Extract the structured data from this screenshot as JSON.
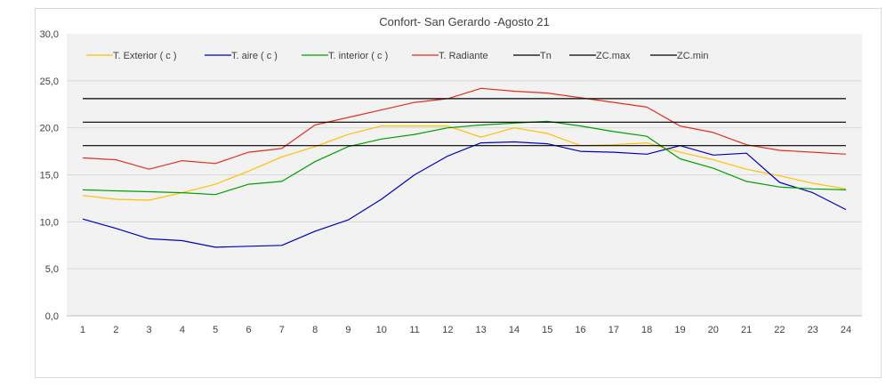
{
  "chart_data": {
    "type": "line",
    "title": "Confort- San Gerardo  -Agosto 21",
    "xlabel": "",
    "ylabel": "",
    "ylim": [
      0,
      30
    ],
    "yticks": [
      "0,0",
      "5,0",
      "10,0",
      "15,0",
      "20,0",
      "25,0",
      "30,0"
    ],
    "categories": [
      "1",
      "2",
      "3",
      "4",
      "5",
      "6",
      "7",
      "8",
      "9",
      "10",
      "11",
      "12",
      "13",
      "14",
      "15",
      "16",
      "17",
      "18",
      "19",
      "20",
      "21",
      "22",
      "23",
      "24"
    ],
    "grid": true,
    "legend_position": "top",
    "series": [
      {
        "name": "T. Exterior ( c )",
        "color": "#ffc000",
        "values": [
          12.8,
          12.4,
          12.3,
          13.1,
          14.0,
          15.4,
          16.9,
          18.0,
          19.3,
          20.2,
          20.2,
          20.2,
          19.0,
          20.0,
          19.4,
          18.1,
          18.2,
          18.4,
          17.4,
          16.6,
          15.6,
          14.9,
          14.1,
          13.5
        ]
      },
      {
        "name": "T. aire ( c )",
        "color": "#0000c0",
        "values": [
          10.3,
          9.3,
          8.2,
          8.0,
          7.3,
          7.4,
          7.5,
          9.0,
          10.2,
          12.4,
          15.0,
          17.0,
          18.4,
          18.5,
          18.3,
          17.5,
          17.4,
          17.2,
          18.1,
          17.1,
          17.3,
          14.2,
          13.1,
          11.3
        ]
      },
      {
        "name": "T. interior ( c )",
        "color": "#00a000",
        "values": [
          13.4,
          13.3,
          13.2,
          13.1,
          12.9,
          14.0,
          14.3,
          16.4,
          18.0,
          18.8,
          19.3,
          20.0,
          20.3,
          20.5,
          20.7,
          20.2,
          19.6,
          19.1,
          16.7,
          15.7,
          14.3,
          13.7,
          13.5,
          13.4
        ]
      },
      {
        "name": "T. Radiante",
        "color": "#e03020",
        "values": [
          16.8,
          16.6,
          15.6,
          16.5,
          16.2,
          17.4,
          17.8,
          20.3,
          21.1,
          21.9,
          22.7,
          23.1,
          24.2,
          23.9,
          23.7,
          23.2,
          22.7,
          22.2,
          20.2,
          19.5,
          18.2,
          17.6,
          17.4,
          17.2
        ]
      },
      {
        "name": "Tn",
        "color": "#000000",
        "values": [
          20.6,
          20.6,
          20.6,
          20.6,
          20.6,
          20.6,
          20.6,
          20.6,
          20.6,
          20.6,
          20.6,
          20.6,
          20.6,
          20.6,
          20.6,
          20.6,
          20.6,
          20.6,
          20.6,
          20.6,
          20.6,
          20.6,
          20.6,
          20.6
        ]
      },
      {
        "name": "ZC.max",
        "color": "#000000",
        "values": [
          23.1,
          23.1,
          23.1,
          23.1,
          23.1,
          23.1,
          23.1,
          23.1,
          23.1,
          23.1,
          23.1,
          23.1,
          23.1,
          23.1,
          23.1,
          23.1,
          23.1,
          23.1,
          23.1,
          23.1,
          23.1,
          23.1,
          23.1,
          23.1
        ]
      },
      {
        "name": "ZC.min",
        "color": "#000000",
        "values": [
          18.1,
          18.1,
          18.1,
          18.1,
          18.1,
          18.1,
          18.1,
          18.1,
          18.1,
          18.1,
          18.1,
          18.1,
          18.1,
          18.1,
          18.1,
          18.1,
          18.1,
          18.1,
          18.1,
          18.1,
          18.1,
          18.1,
          18.1,
          18.1
        ]
      }
    ]
  }
}
